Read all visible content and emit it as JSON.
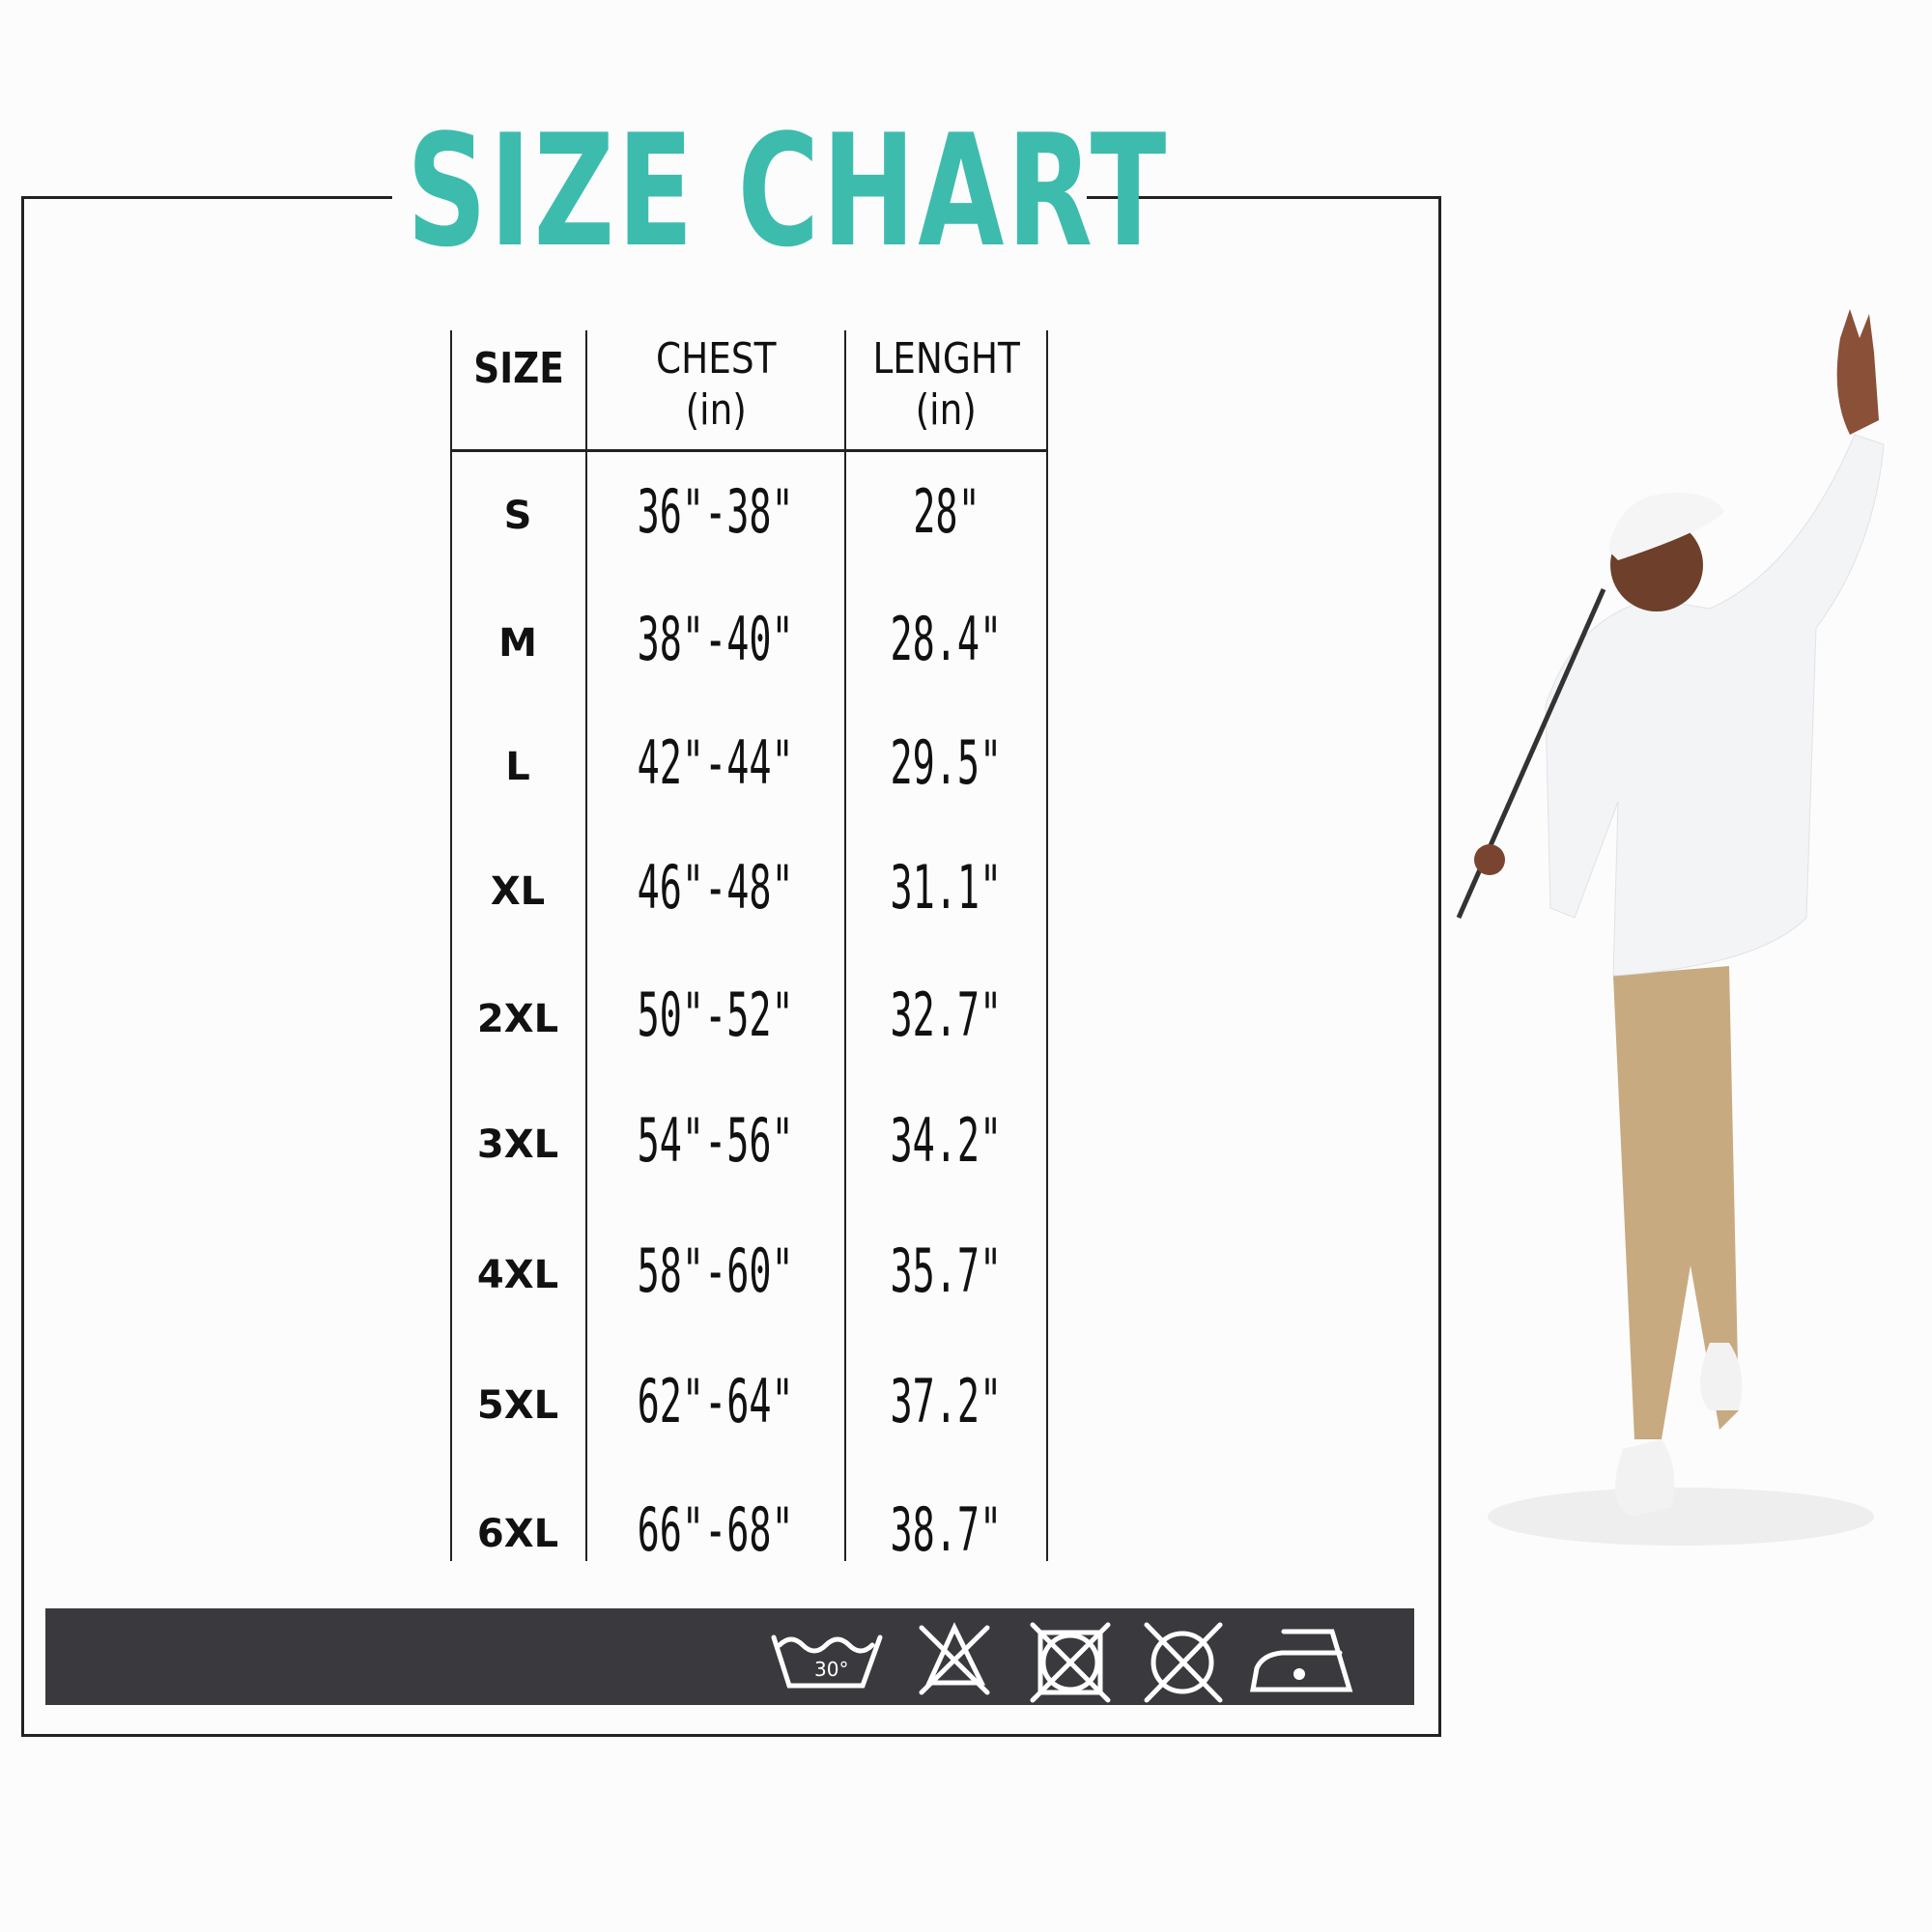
{
  "title": "SIZE CHART",
  "accent_color": "#3dbcae",
  "table": {
    "headers": [
      {
        "label": "SIZE",
        "unit": ""
      },
      {
        "label": "CHEST",
        "unit": "(in)"
      },
      {
        "label": "LENGHT",
        "unit": "(in)"
      }
    ],
    "rows": [
      {
        "size": "S",
        "chest": "36\"-38\"",
        "length": "28\""
      },
      {
        "size": "M",
        "chest": "38\"-40\"",
        "length": "28.4\""
      },
      {
        "size": "L",
        "chest": "42\"-44\"",
        "length": "29.5\""
      },
      {
        "size": "XL",
        "chest": "46\"-48\"",
        "length": "31.1\""
      },
      {
        "size": "2XL",
        "chest": "50\"-52\"",
        "length": "32.7\""
      },
      {
        "size": "3XL",
        "chest": "54\"-56\"",
        "length": "34.2\""
      },
      {
        "size": "4XL",
        "chest": "58\"-60\"",
        "length": "35.7\""
      },
      {
        "size": "5XL",
        "chest": "62\"-64\"",
        "length": "37.2\""
      },
      {
        "size": "6XL",
        "chest": "66\"-68\"",
        "length": "38.7\""
      }
    ]
  },
  "care": {
    "bar_color": "#3a393d",
    "icons": [
      "wash-30-icon",
      "no-bleach-icon",
      "no-tumble-dry-icon",
      "no-dry-clean-icon",
      "iron-low-icon"
    ],
    "wash_temp": "30°"
  }
}
